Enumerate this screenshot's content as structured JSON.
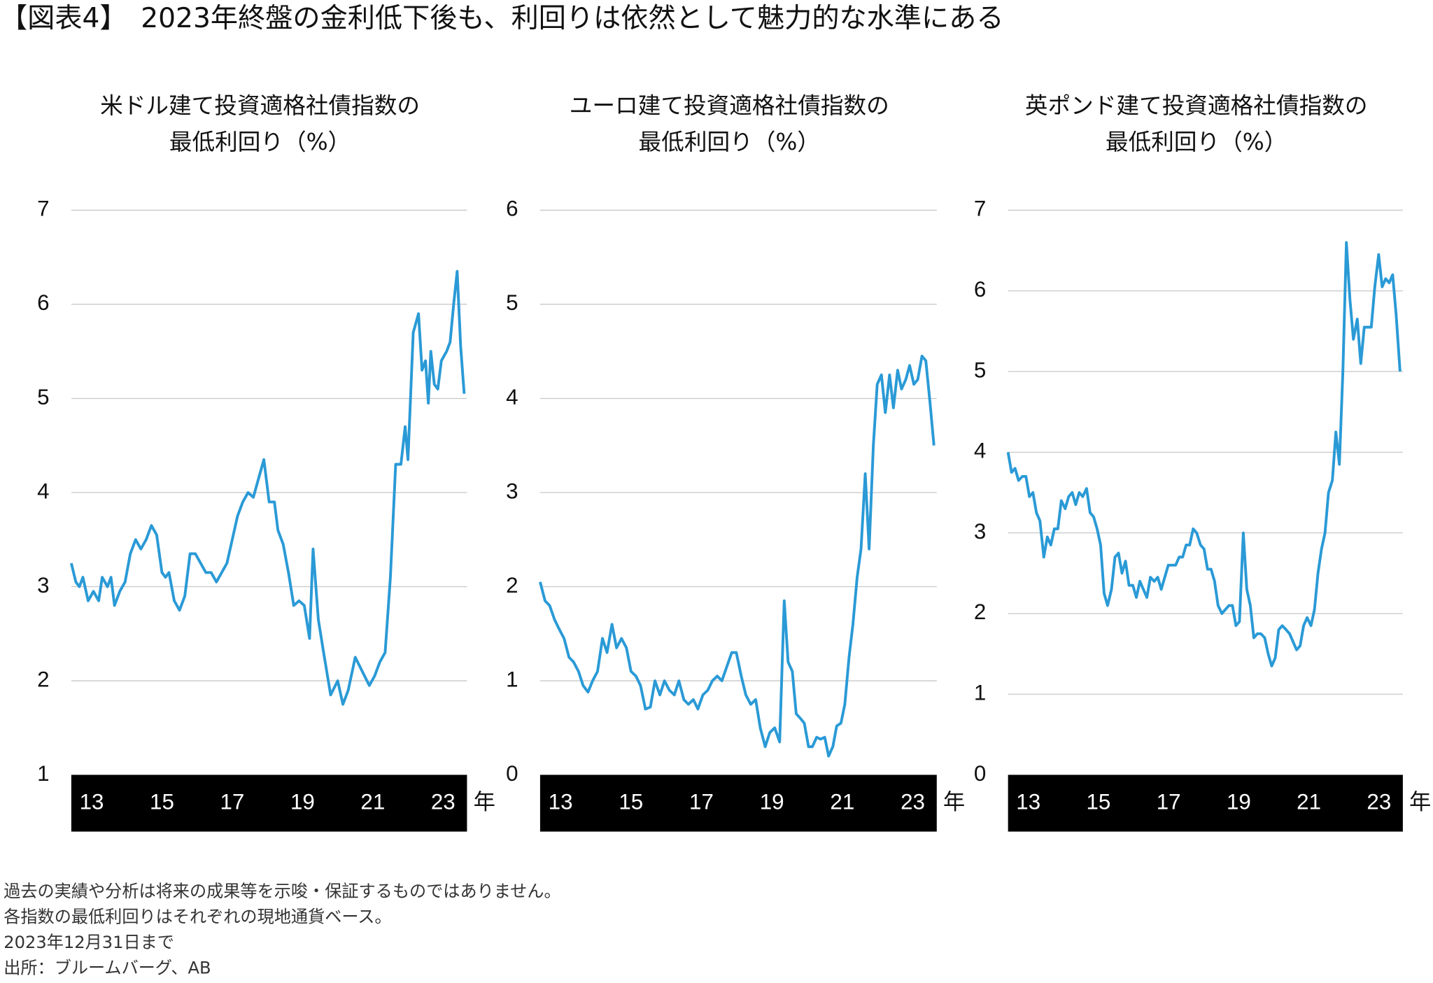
{
  "title": "【図表4】　2023年終盤の金利低下後も、利回りは依然として魅力的な水準にある",
  "chart_data": [
    {
      "type": "line",
      "title": [
        "米ドル建て投資適格社債指数の",
        "最低利回り（%）"
      ],
      "x_label": "年",
      "color": "#2a9ad6",
      "grid": true,
      "xlim": [
        12.92,
        24.18
      ],
      "ylim": [
        1,
        7
      ],
      "yticks": [
        1,
        2,
        3,
        4,
        5,
        6,
        7
      ],
      "xticks": [
        {
          "value": 13.5,
          "label": "13"
        },
        {
          "value": 15.5,
          "label": "15"
        },
        {
          "value": 17.5,
          "label": "17"
        },
        {
          "value": 19.5,
          "label": "19"
        },
        {
          "value": 21.5,
          "label": "21"
        },
        {
          "value": 23.5,
          "label": "23"
        }
      ],
      "x": [
        12.92,
        13.05,
        13.15,
        13.25,
        13.4,
        13.55,
        13.7,
        13.8,
        13.95,
        14.05,
        14.15,
        14.3,
        14.45,
        14.6,
        14.75,
        14.9,
        15.05,
        15.2,
        15.35,
        15.5,
        15.6,
        15.7,
        15.85,
        16.0,
        16.15,
        16.3,
        16.45,
        16.6,
        16.75,
        16.9,
        17.05,
        17.2,
        17.35,
        17.5,
        17.65,
        17.8,
        17.95,
        18.1,
        18.25,
        18.4,
        18.55,
        18.7,
        18.8,
        18.95,
        19.1,
        19.25,
        19.4,
        19.55,
        19.7,
        19.8,
        19.95,
        20.1,
        20.3,
        20.5,
        20.65,
        20.8,
        21.0,
        21.2,
        21.4,
        21.55,
        21.7,
        21.85,
        22.0,
        22.15,
        22.3,
        22.42,
        22.5,
        22.65,
        22.8,
        22.9,
        23.0,
        23.08,
        23.15,
        23.25,
        23.35,
        23.45,
        23.6,
        23.7,
        23.8,
        23.9,
        24.0,
        24.1
      ],
      "values": [
        3.25,
        3.05,
        3.0,
        3.1,
        2.85,
        2.95,
        2.85,
        3.1,
        3.0,
        3.1,
        2.8,
        2.95,
        3.05,
        3.35,
        3.5,
        3.4,
        3.5,
        3.65,
        3.55,
        3.15,
        3.1,
        3.15,
        2.85,
        2.75,
        2.9,
        3.35,
        3.35,
        3.25,
        3.15,
        3.15,
        3.05,
        3.15,
        3.25,
        3.5,
        3.75,
        3.9,
        4.0,
        3.95,
        4.15,
        4.35,
        3.9,
        3.9,
        3.6,
        3.45,
        3.15,
        2.8,
        2.85,
        2.8,
        2.45,
        3.4,
        2.65,
        2.3,
        1.85,
        2.0,
        1.75,
        1.9,
        2.25,
        2.1,
        1.95,
        2.05,
        2.2,
        2.3,
        3.1,
        4.3,
        4.3,
        4.7,
        4.35,
        5.7,
        5.9,
        5.3,
        5.4,
        4.95,
        5.5,
        5.15,
        5.1,
        5.4,
        5.5,
        5.6,
        6.0,
        6.35,
        5.55,
        5.05
      ]
    },
    {
      "type": "line",
      "title": [
        "ユーロ建て投資適格社債指数の",
        "最低利回り（%）"
      ],
      "x_label": "年",
      "color": "#2a9ad6",
      "grid": true,
      "xlim": [
        12.92,
        24.18
      ],
      "ylim": [
        0,
        6
      ],
      "yticks": [
        0,
        1,
        2,
        3,
        4,
        5,
        6
      ],
      "xticks": [
        {
          "value": 13.5,
          "label": "13"
        },
        {
          "value": 15.5,
          "label": "15"
        },
        {
          "value": 17.5,
          "label": "17"
        },
        {
          "value": 19.5,
          "label": "19"
        },
        {
          "value": 21.5,
          "label": "21"
        },
        {
          "value": 23.5,
          "label": "23"
        }
      ],
      "x": [
        12.92,
        13.06,
        13.19,
        13.33,
        13.46,
        13.6,
        13.74,
        13.87,
        14.01,
        14.14,
        14.28,
        14.41,
        14.55,
        14.69,
        14.82,
        14.96,
        15.09,
        15.23,
        15.37,
        15.5,
        15.64,
        15.77,
        15.91,
        16.05,
        16.18,
        16.32,
        16.45,
        16.59,
        16.73,
        16.86,
        17.0,
        17.13,
        17.27,
        17.4,
        17.54,
        17.68,
        17.81,
        17.95,
        18.08,
        18.22,
        18.36,
        18.49,
        18.63,
        18.76,
        18.9,
        19.04,
        19.17,
        19.31,
        19.44,
        19.58,
        19.72,
        19.85,
        19.96,
        20.08,
        20.19,
        20.31,
        20.42,
        20.54,
        20.65,
        20.77,
        20.88,
        21.0,
        21.11,
        21.23,
        21.34,
        21.46,
        21.57,
        21.69,
        21.8,
        21.92,
        22.03,
        22.15,
        22.26,
        22.38,
        22.49,
        22.61,
        22.72,
        22.84,
        22.95,
        23.07,
        23.18,
        23.3,
        23.41,
        23.53,
        23.64,
        23.76,
        23.87,
        23.99,
        24.1
      ],
      "values": [
        2.05,
        1.85,
        1.8,
        1.65,
        1.55,
        1.45,
        1.25,
        1.2,
        1.1,
        0.95,
        0.88,
        1.0,
        1.1,
        1.45,
        1.3,
        1.6,
        1.35,
        1.45,
        1.35,
        1.1,
        1.05,
        0.95,
        0.7,
        0.72,
        1.0,
        0.85,
        1.0,
        0.9,
        0.85,
        1.0,
        0.8,
        0.75,
        0.8,
        0.7,
        0.85,
        0.9,
        1.0,
        1.05,
        1.0,
        1.15,
        1.3,
        1.3,
        1.05,
        0.85,
        0.75,
        0.8,
        0.5,
        0.3,
        0.45,
        0.5,
        0.35,
        1.85,
        1.2,
        1.1,
        0.65,
        0.6,
        0.55,
        0.3,
        0.3,
        0.4,
        0.38,
        0.4,
        0.2,
        0.3,
        0.52,
        0.55,
        0.75,
        1.25,
        1.6,
        2.1,
        2.4,
        3.2,
        2.4,
        3.5,
        4.15,
        4.25,
        3.85,
        4.25,
        3.9,
        4.3,
        4.1,
        4.2,
        4.35,
        4.15,
        4.2,
        4.45,
        4.4,
        3.95,
        3.5
      ]
    },
    {
      "type": "line",
      "title": [
        "英ポンド建て投資適格社債指数の",
        "最低利回り（%）"
      ],
      "x_label": "年",
      "color": "#2a9ad6",
      "grid": true,
      "xlim": [
        12.92,
        24.18
      ],
      "ylim": [
        0,
        7
      ],
      "yticks": [
        0,
        1,
        2,
        3,
        4,
        5,
        6,
        7
      ],
      "xticks": [
        {
          "value": 13.5,
          "label": "13"
        },
        {
          "value": 15.5,
          "label": "15"
        },
        {
          "value": 17.5,
          "label": "17"
        },
        {
          "value": 19.5,
          "label": "19"
        },
        {
          "value": 21.5,
          "label": "21"
        },
        {
          "value": 23.5,
          "label": "23"
        }
      ],
      "x": [
        12.92,
        13.02,
        13.12,
        13.22,
        13.33,
        13.43,
        13.53,
        13.63,
        13.73,
        13.83,
        13.94,
        14.04,
        14.14,
        14.24,
        14.34,
        14.44,
        14.55,
        14.65,
        14.75,
        14.85,
        14.95,
        15.05,
        15.16,
        15.26,
        15.36,
        15.46,
        15.56,
        15.66,
        15.76,
        15.87,
        15.97,
        16.07,
        16.17,
        16.27,
        16.37,
        16.48,
        16.58,
        16.68,
        16.78,
        16.88,
        16.98,
        17.09,
        17.19,
        17.29,
        17.39,
        17.49,
        17.59,
        17.7,
        17.8,
        17.9,
        18.0,
        18.1,
        18.2,
        18.3,
        18.41,
        18.51,
        18.61,
        18.71,
        18.81,
        18.91,
        19.02,
        19.12,
        19.22,
        19.32,
        19.42,
        19.52,
        19.63,
        19.73,
        19.83,
        19.93,
        20.03,
        20.13,
        20.24,
        20.34,
        20.44,
        20.54,
        20.64,
        20.74,
        20.85,
        20.95,
        21.05,
        21.15,
        21.25,
        21.35,
        21.45,
        21.56,
        21.66,
        21.76,
        21.86,
        21.96,
        22.06,
        22.17,
        22.27,
        22.37,
        22.47,
        22.57,
        22.67,
        22.77,
        22.88,
        22.98,
        23.08,
        23.18,
        23.28,
        23.38,
        23.49,
        23.59,
        23.69,
        23.79,
        23.89,
        23.99,
        24.1
      ],
      "values": [
        4.0,
        3.75,
        3.8,
        3.65,
        3.7,
        3.7,
        3.45,
        3.5,
        3.25,
        3.15,
        2.7,
        2.95,
        2.85,
        3.05,
        3.05,
        3.4,
        3.3,
        3.45,
        3.5,
        3.35,
        3.5,
        3.45,
        3.55,
        3.25,
        3.2,
        3.05,
        2.85,
        2.25,
        2.1,
        2.3,
        2.7,
        2.75,
        2.5,
        2.65,
        2.35,
        2.35,
        2.2,
        2.4,
        2.3,
        2.2,
        2.45,
        2.4,
        2.45,
        2.3,
        2.45,
        2.6,
        2.6,
        2.6,
        2.7,
        2.7,
        2.85,
        2.85,
        3.05,
        3.0,
        2.85,
        2.8,
        2.55,
        2.55,
        2.4,
        2.1,
        2.0,
        2.05,
        2.1,
        2.1,
        1.85,
        1.9,
        3.0,
        2.3,
        2.1,
        1.7,
        1.75,
        1.75,
        1.7,
        1.5,
        1.35,
        1.45,
        1.8,
        1.85,
        1.8,
        1.75,
        1.65,
        1.55,
        1.6,
        1.85,
        1.95,
        1.85,
        2.05,
        2.5,
        2.8,
        3.0,
        3.5,
        3.65,
        4.25,
        3.85,
        5.0,
        6.6,
        5.9,
        5.4,
        5.65,
        5.1,
        5.55,
        5.55,
        5.55,
        6.05,
        6.45,
        6.05,
        6.15,
        6.1,
        6.2,
        5.7,
        5.0
      ]
    }
  ],
  "notes": [
    "過去の実績や分析は将来の成果等を示唆・保証するものではありません。",
    "各指数の最低利回りはそれぞれの現地通貨ベース。",
    "2023年12月31日まで",
    "出所：ブルームバーグ、AB"
  ]
}
